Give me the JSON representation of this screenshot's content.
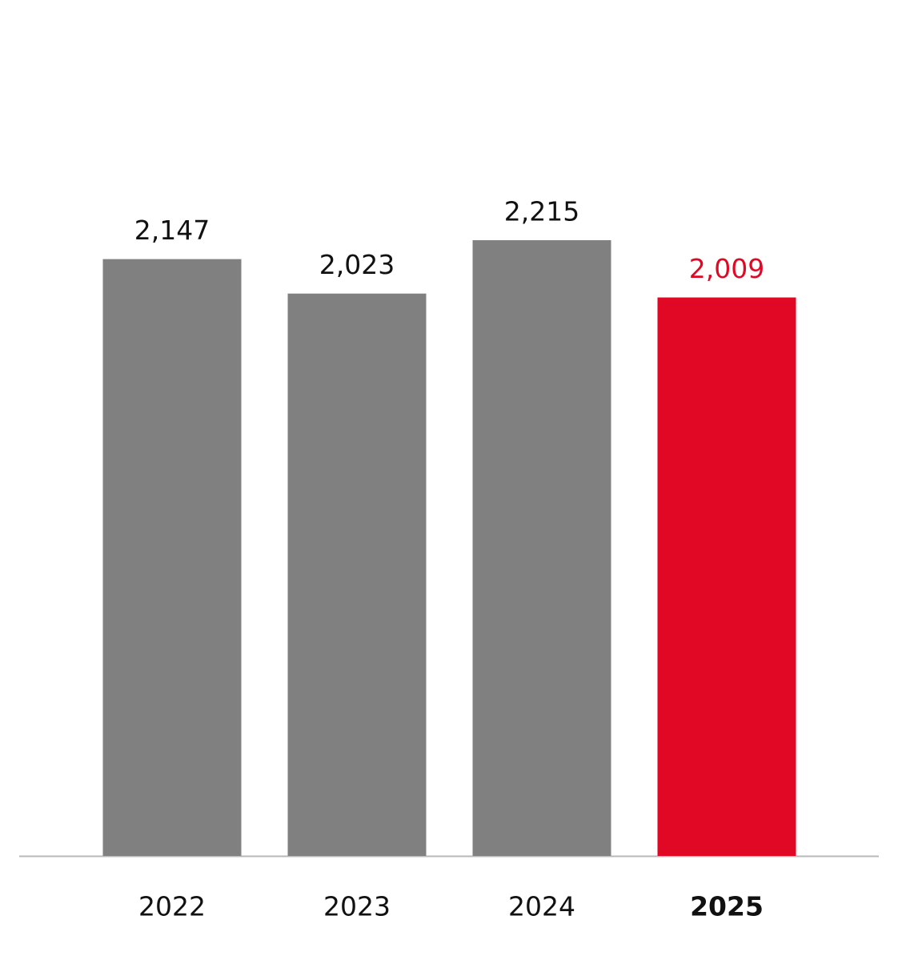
{
  "chart_data": {
    "type": "bar",
    "categories": [
      "2022",
      "2023",
      "2024",
      "2025"
    ],
    "values": [
      2147,
      2023,
      2215,
      2009
    ],
    "value_labels": [
      "2,147",
      "2,023",
      "2,215",
      "2,009"
    ],
    "color": "#808080",
    "highlight_index": 3,
    "highlight_color": "#e00824"
  }
}
